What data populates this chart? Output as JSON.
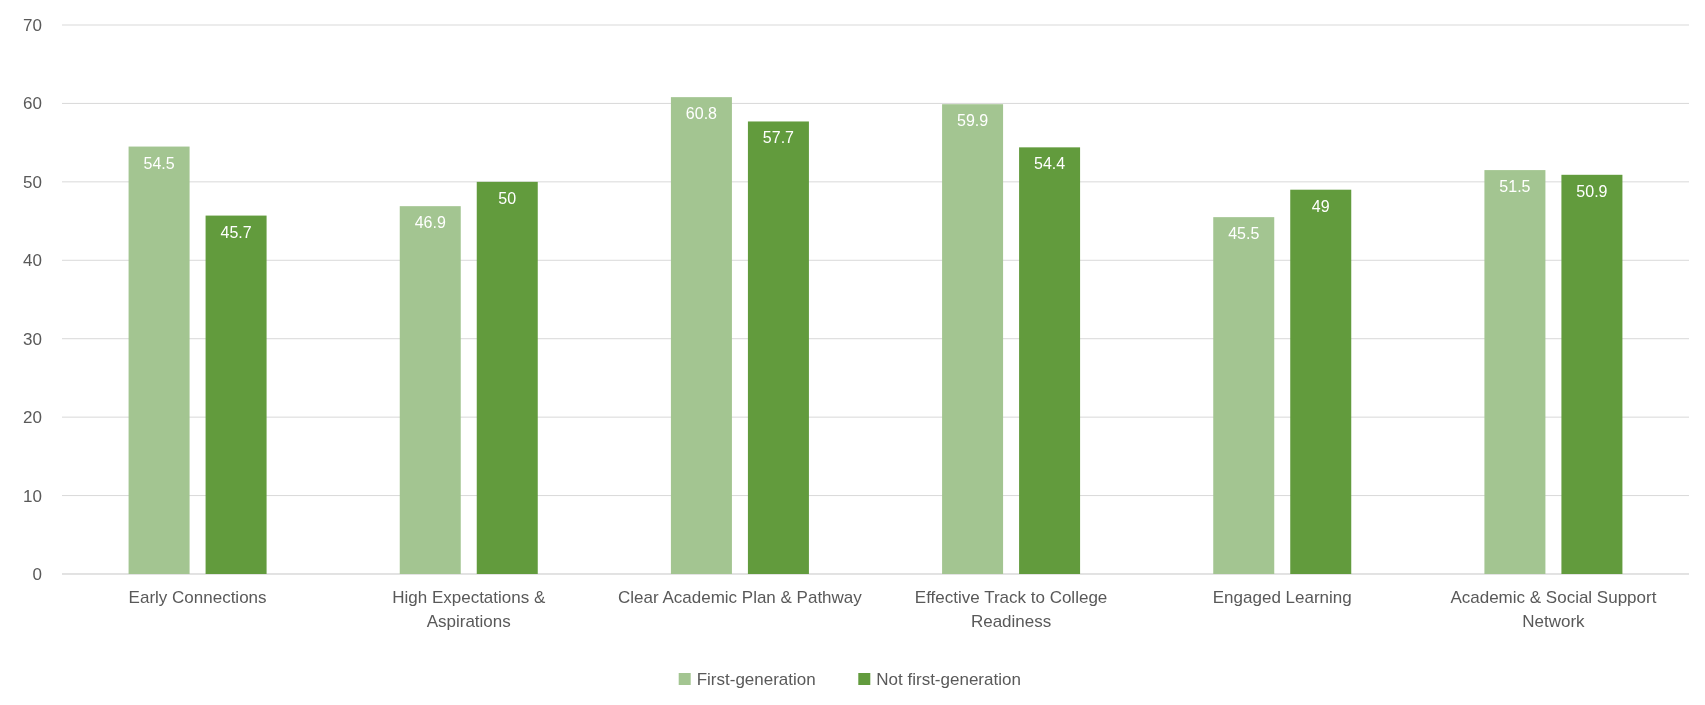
{
  "chart_data": {
    "type": "bar",
    "categories": [
      "Early Connections",
      "High Expectations & Aspirations",
      "Clear Academic Plan & Pathway",
      "Effective Track to College Readiness",
      "Engaged Learning",
      "Academic & Social Support Network"
    ],
    "series": [
      {
        "name": "First-generation",
        "color": "#a3c591",
        "values": [
          54.5,
          46.9,
          60.8,
          59.9,
          45.5,
          51.5
        ]
      },
      {
        "name": "Not first-generation",
        "color": "#629b3d",
        "values": [
          45.7,
          50,
          57.7,
          54.4,
          49,
          50.9
        ]
      }
    ],
    "ylim": [
      0,
      70
    ],
    "yticks": [
      0,
      10,
      20,
      30,
      40,
      50,
      60,
      70
    ],
    "grid": "y",
    "legend": "bottom",
    "data_labels": true
  }
}
